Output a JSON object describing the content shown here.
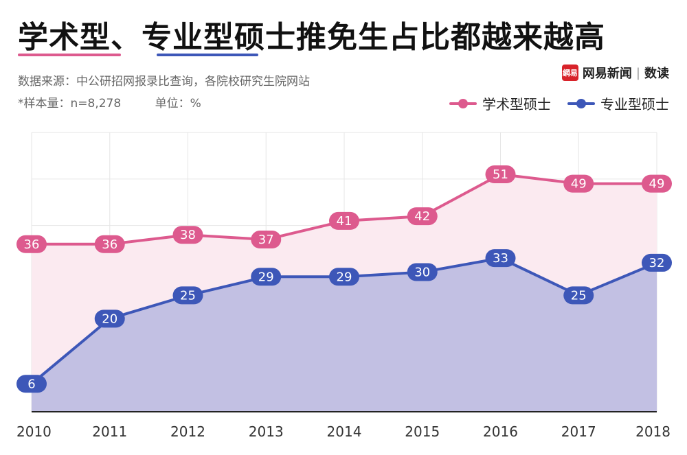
{
  "header": {
    "title": "学术型、专业型硕士推免生占比都越来越高",
    "source": "数据来源：中公研招网报录比查询，各院校研究生院网站",
    "sample": "*样本量：n=8,278",
    "unit": "单位：%"
  },
  "brand": {
    "logo_text": "網易",
    "name": "网易新闻",
    "section": "数读"
  },
  "colors": {
    "academic": "#dd5a8e",
    "professional": "#3d57b8",
    "academic_fill": "#fbeaf0",
    "professional_fill": "#c2c0e3"
  },
  "chart_data": {
    "type": "area",
    "x": [
      "2010",
      "2011",
      "2012",
      "2013",
      "2014",
      "2015",
      "2016",
      "2017",
      "2018"
    ],
    "series": [
      {
        "name": "学术型硕士",
        "values": [
          36,
          36,
          38,
          37,
          41,
          42,
          51,
          49,
          49
        ]
      },
      {
        "name": "专业型硕士",
        "values": [
          6,
          20,
          25,
          29,
          29,
          30,
          33,
          25,
          32
        ]
      }
    ],
    "ylim": [
      0,
      60
    ],
    "grid": true,
    "legend": "top-right",
    "xlabel": "",
    "ylabel": ""
  }
}
